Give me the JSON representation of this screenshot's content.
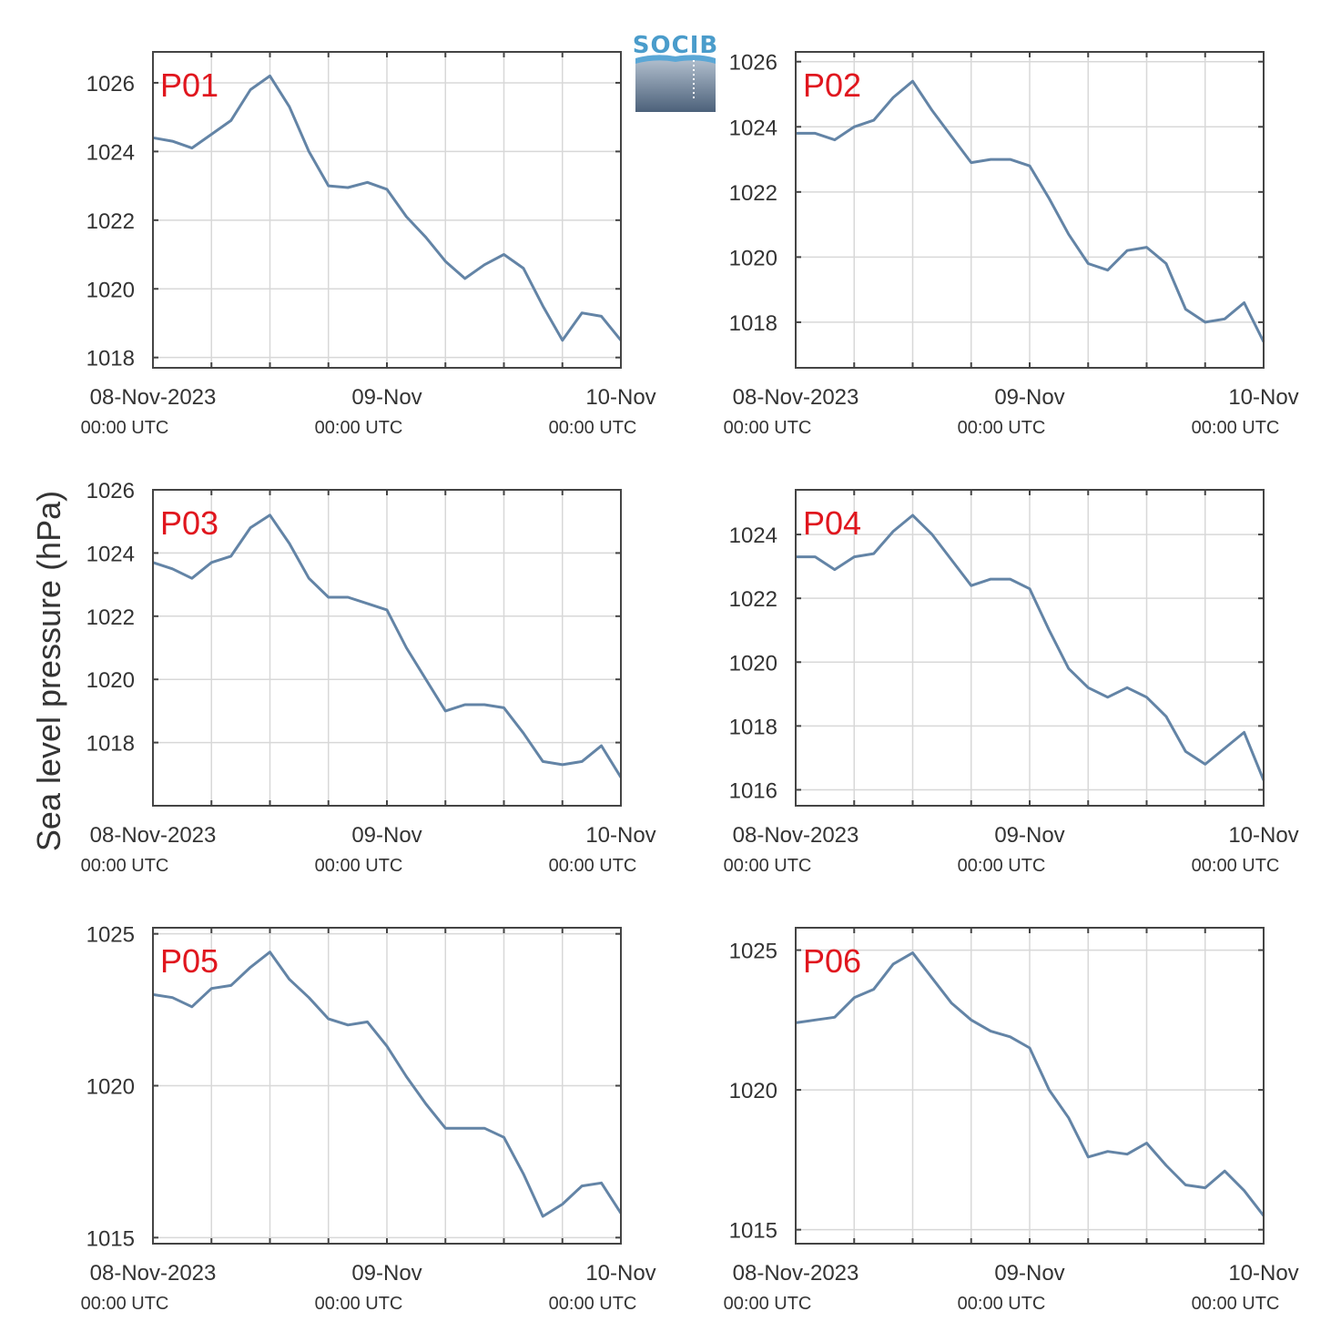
{
  "logo": {
    "text": "SOCIB",
    "color": "#4a9ccb"
  },
  "ylabel": "Sea level pressure (hPa)",
  "colors": {
    "line": "#6384a6",
    "panel_label": "#e0161e",
    "grid": "#d8d8d8",
    "axis": "#444444"
  },
  "chart_data": [
    {
      "type": "line",
      "panel_label": "P01",
      "x": [
        0,
        2,
        4,
        6,
        8,
        10,
        12,
        14,
        16,
        18,
        20,
        22,
        24,
        26,
        28,
        30,
        32,
        34,
        36,
        38,
        40,
        42,
        44,
        46,
        48
      ],
      "xticks": [
        {
          "pos": 0,
          "date": "08-Nov-2023",
          "time": "00:00 UTC"
        },
        {
          "pos": 24,
          "date": "09-Nov",
          "time": "00:00 UTC"
        },
        {
          "pos": 48,
          "date": "10-Nov",
          "time": "00:00 UTC"
        }
      ],
      "ylim": [
        1017.7,
        1026.9
      ],
      "yticks": [
        1018,
        1020,
        1022,
        1024,
        1026
      ],
      "values": [
        1024.4,
        1024.3,
        1024.1,
        1024.5,
        1024.9,
        1025.8,
        1026.2,
        1025.3,
        1024.0,
        1023.0,
        1022.95,
        1023.1,
        1022.9,
        1022.1,
        1021.5,
        1020.8,
        1020.3,
        1020.7,
        1021.0,
        1020.6,
        1019.5,
        1018.5,
        1019.3,
        1019.2,
        1018.5
      ]
    },
    {
      "type": "line",
      "panel_label": "P02",
      "x": [
        0,
        2,
        4,
        6,
        8,
        10,
        12,
        14,
        16,
        18,
        20,
        22,
        24,
        26,
        28,
        30,
        32,
        34,
        36,
        38,
        40,
        42,
        44,
        46,
        48
      ],
      "xticks": [
        {
          "pos": 0,
          "date": "08-Nov-2023",
          "time": "00:00 UTC"
        },
        {
          "pos": 24,
          "date": "09-Nov",
          "time": "00:00 UTC"
        },
        {
          "pos": 48,
          "date": "10-Nov",
          "time": "00:00 UTC"
        }
      ],
      "ylim": [
        1016.6,
        1026.3
      ],
      "yticks": [
        1018,
        1020,
        1022,
        1024,
        1026
      ],
      "values": [
        1023.8,
        1023.8,
        1023.6,
        1024.0,
        1024.2,
        1024.9,
        1025.4,
        1024.5,
        1023.7,
        1022.9,
        1023.0,
        1023.0,
        1022.8,
        1021.8,
        1020.7,
        1019.8,
        1019.6,
        1020.2,
        1020.3,
        1019.8,
        1018.4,
        1018.0,
        1018.1,
        1018.6,
        1017.4
      ]
    },
    {
      "type": "line",
      "panel_label": "P03",
      "x": [
        0,
        2,
        4,
        6,
        8,
        10,
        12,
        14,
        16,
        18,
        20,
        22,
        24,
        26,
        28,
        30,
        32,
        34,
        36,
        38,
        40,
        42,
        44,
        46,
        48
      ],
      "xticks": [
        {
          "pos": 0,
          "date": "08-Nov-2023",
          "time": "00:00 UTC"
        },
        {
          "pos": 24,
          "date": "09-Nov",
          "time": "00:00 UTC"
        },
        {
          "pos": 48,
          "date": "10-Nov",
          "time": "00:00 UTC"
        }
      ],
      "ylim": [
        1016.0,
        1026.0
      ],
      "yticks": [
        1018,
        1020,
        1022,
        1024,
        1026
      ],
      "values": [
        1023.7,
        1023.5,
        1023.2,
        1023.7,
        1023.9,
        1024.8,
        1025.2,
        1024.3,
        1023.2,
        1022.6,
        1022.6,
        1022.4,
        1022.2,
        1021.0,
        1020.0,
        1019.0,
        1019.2,
        1019.2,
        1019.1,
        1018.3,
        1017.4,
        1017.3,
        1017.4,
        1017.9,
        1016.9
      ]
    },
    {
      "type": "line",
      "panel_label": "P04",
      "x": [
        0,
        2,
        4,
        6,
        8,
        10,
        12,
        14,
        16,
        18,
        20,
        22,
        24,
        26,
        28,
        30,
        32,
        34,
        36,
        38,
        40,
        42,
        44,
        46,
        48
      ],
      "xticks": [
        {
          "pos": 0,
          "date": "08-Nov-2023",
          "time": "00:00 UTC"
        },
        {
          "pos": 24,
          "date": "09-Nov",
          "time": "00:00 UTC"
        },
        {
          "pos": 48,
          "date": "10-Nov",
          "time": "00:00 UTC"
        }
      ],
      "ylim": [
        1015.5,
        1025.4
      ],
      "yticks": [
        1016,
        1018,
        1020,
        1022,
        1024
      ],
      "values": [
        1023.3,
        1023.3,
        1022.9,
        1023.3,
        1023.4,
        1024.1,
        1024.6,
        1024.0,
        1023.2,
        1022.4,
        1022.6,
        1022.6,
        1022.3,
        1021.0,
        1019.8,
        1019.2,
        1018.9,
        1019.2,
        1018.9,
        1018.3,
        1017.2,
        1016.8,
        1017.3,
        1017.8,
        1016.3
      ]
    },
    {
      "type": "line",
      "panel_label": "P05",
      "x": [
        0,
        2,
        4,
        6,
        8,
        10,
        12,
        14,
        16,
        18,
        20,
        22,
        24,
        26,
        28,
        30,
        32,
        34,
        36,
        38,
        40,
        42,
        44,
        46,
        48
      ],
      "xticks": [
        {
          "pos": 0,
          "date": "08-Nov-2023",
          "time": "00:00 UTC"
        },
        {
          "pos": 24,
          "date": "09-Nov",
          "time": "00:00 UTC"
        },
        {
          "pos": 48,
          "date": "10-Nov",
          "time": "00:00 UTC"
        }
      ],
      "ylim": [
        1014.8,
        1025.2
      ],
      "yticks": [
        1015,
        1020,
        1025
      ],
      "values": [
        1023.0,
        1022.9,
        1022.6,
        1023.2,
        1023.3,
        1023.9,
        1024.4,
        1023.5,
        1022.9,
        1022.2,
        1022.0,
        1022.1,
        1021.3,
        1020.3,
        1019.4,
        1018.6,
        1018.6,
        1018.6,
        1018.3,
        1017.1,
        1015.7,
        1016.1,
        1016.7,
        1016.8,
        1015.8
      ]
    },
    {
      "type": "line",
      "panel_label": "P06",
      "x": [
        0,
        2,
        4,
        6,
        8,
        10,
        12,
        14,
        16,
        18,
        20,
        22,
        24,
        26,
        28,
        30,
        32,
        34,
        36,
        38,
        40,
        42,
        44,
        46,
        48
      ],
      "xticks": [
        {
          "pos": 0,
          "date": "08-Nov-2023",
          "time": "00:00 UTC"
        },
        {
          "pos": 24,
          "date": "09-Nov",
          "time": "00:00 UTC"
        },
        {
          "pos": 48,
          "date": "10-Nov",
          "time": "00:00 UTC"
        }
      ],
      "ylim": [
        1014.5,
        1025.8
      ],
      "yticks": [
        1015,
        1020,
        1025
      ],
      "values": [
        1022.4,
        1022.5,
        1022.6,
        1023.3,
        1023.6,
        1024.5,
        1024.9,
        1024.0,
        1023.1,
        1022.5,
        1022.1,
        1021.9,
        1021.5,
        1020.0,
        1019.0,
        1017.6,
        1017.8,
        1017.7,
        1018.1,
        1017.3,
        1016.6,
        1016.5,
        1017.1,
        1016.4,
        1015.5
      ]
    }
  ]
}
